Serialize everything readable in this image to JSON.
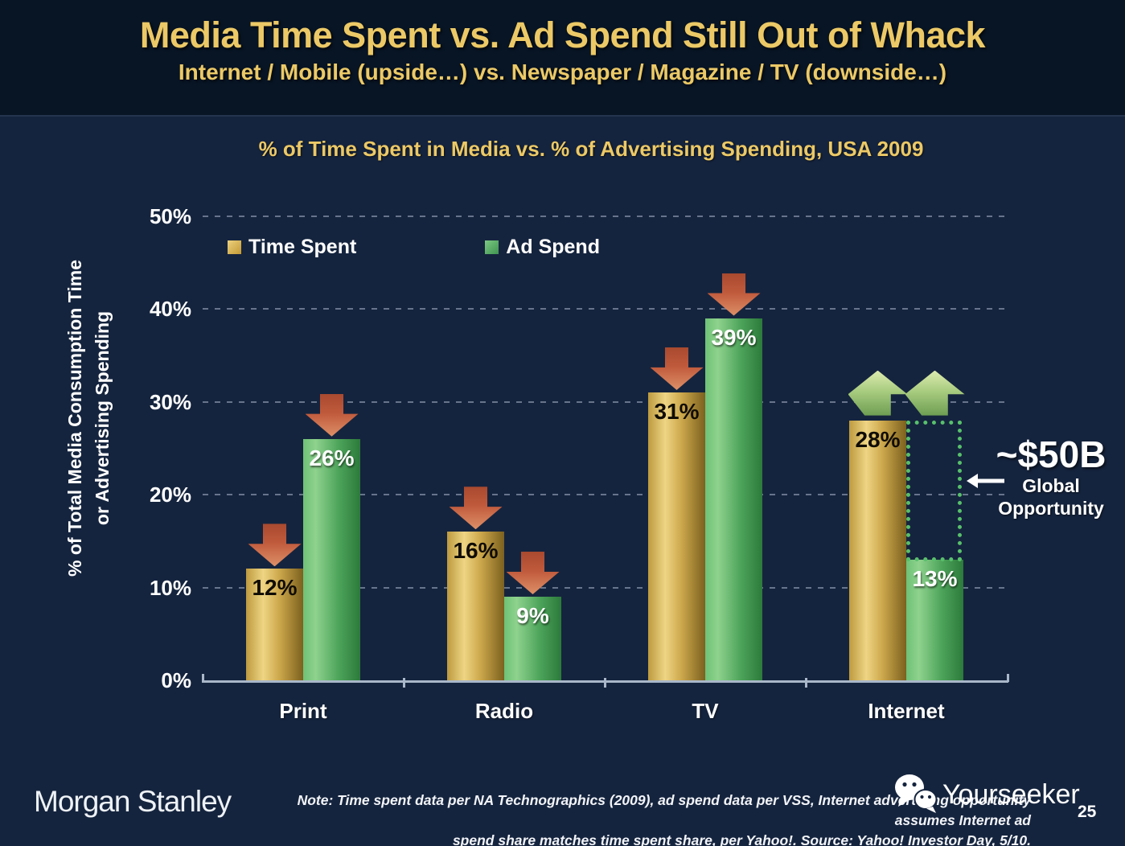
{
  "slide": {
    "title": "Media Time Spent vs. Ad Spend Still Out of Whack",
    "subtitle": "Internet / Mobile (upside…) vs. Newspaper / Magazine / TV (downside…)"
  },
  "chart_data": {
    "type": "bar",
    "title": "% of Time Spent in Media vs. % of Advertising Spending, USA 2009",
    "ylabel_line1": "% of Total Media Consumption Time",
    "ylabel_line2": "or Advertising Spending",
    "categories": [
      "Print",
      "Radio",
      "TV",
      "Internet"
    ],
    "series": [
      {
        "name": "Time Spent",
        "color": "#d9ab45",
        "values": [
          12,
          16,
          31,
          28
        ],
        "labels": [
          "12%",
          "16%",
          "31%",
          "28%"
        ]
      },
      {
        "name": "Ad Spend",
        "color": "#56ab64",
        "values": [
          26,
          9,
          39,
          13
        ],
        "labels": [
          "26%",
          "9%",
          "39%",
          "13%"
        ]
      }
    ],
    "y_ticks": [
      "0%",
      "10%",
      "20%",
      "30%",
      "40%",
      "50%"
    ],
    "ylim": [
      0,
      50
    ],
    "grid": "horizontal dashed",
    "legend_position": "top-left inside plot",
    "trend_arrows": [
      [
        "down",
        "down"
      ],
      [
        "down",
        "down"
      ],
      [
        "down",
        "down"
      ],
      [
        "up",
        "up"
      ]
    ],
    "annotation": {
      "headline": "~$50B",
      "line1": "Global",
      "line2": "Opportunity",
      "target": "gap between Internet time spent 28% and ad spend 13%"
    }
  },
  "legend": {
    "items": [
      {
        "label": "Time Spent",
        "color": "#d9ab45"
      },
      {
        "label": "Ad Spend",
        "color": "#56ab64"
      }
    ]
  },
  "footer": {
    "logo": "Morgan Stanley",
    "note_line1": "Note: Time spent data per NA Technographics (2009), ad spend data per VSS, Internet advertising opportunity assumes Internet ad",
    "note_line2": "spend share matches time spent share, per Yahoo!. Source: Yahoo! Investor Day, 5/10.",
    "page_number": "25"
  },
  "watermark": {
    "text": "Yourseeker",
    "icon": "wechat-icon"
  },
  "colors": {
    "header_bg": "#081525",
    "body_bg": "#15243e",
    "accent_gold": "#ecc966",
    "bar_gold": "#d9ab45",
    "bar_green": "#56ab64",
    "arrow_down_red": "#c05a3c",
    "arrow_up_green": "#a9cc80",
    "opportunity_dotted": "#58c06c",
    "axis": "#a9b7c9"
  }
}
